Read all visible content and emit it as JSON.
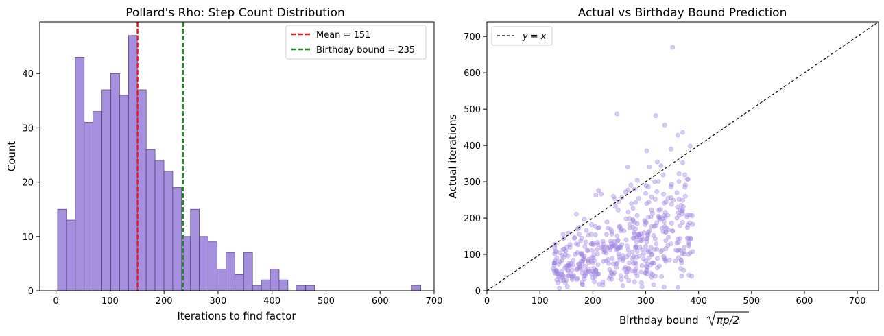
{
  "chart_data": [
    {
      "type": "histogram",
      "title": "Pollard's Rho: Step Count Distribution",
      "xlabel": "Iterations to find factor",
      "ylabel": "Count",
      "xlim": [
        -30,
        700
      ],
      "ylim": [
        0,
        49.5
      ],
      "xticks": [
        0,
        100,
        200,
        300,
        400,
        500,
        600,
        700
      ],
      "yticks": [
        0,
        10,
        20,
        30,
        40
      ],
      "bin_width": 16.4,
      "bin_start": 3,
      "counts": [
        15,
        13,
        43,
        31,
        33,
        37,
        40,
        36,
        47,
        37,
        26,
        24,
        22,
        19,
        10,
        15,
        10,
        9,
        4,
        7,
        3,
        7,
        1,
        2,
        4,
        2,
        0,
        1,
        1,
        0,
        0,
        0,
        0,
        0,
        0,
        0,
        0,
        0,
        0,
        0,
        1
      ],
      "bar_color": "#a68fdf",
      "edge_color": "#4b3a6b",
      "vlines": [
        {
          "label": "Mean = 151",
          "x": 151,
          "color": "#e31a1c"
        },
        {
          "label": "Birthday bound = 235",
          "x": 235,
          "color": "#1a8a1a"
        }
      ],
      "legend_position": "top-right"
    },
    {
      "type": "scatter",
      "title": "Actual vs Birthday Bound Prediction",
      "xlabel": "Birthday bound",
      "xlabel_math": "√πp/2",
      "ylabel": "Actual iterations",
      "xlim": [
        0,
        740
      ],
      "ylim": [
        0,
        740
      ],
      "xticks": [
        0,
        100,
        200,
        300,
        400,
        500,
        600,
        700
      ],
      "yticks": [
        0,
        100,
        200,
        300,
        400,
        500,
        600,
        700
      ],
      "reference_line": {
        "label": "y = x",
        "label_italic_y": "y",
        "label_eq": "=",
        "label_italic_x": "x"
      },
      "point_color": "#9b7fe0",
      "legend_position": "top-left",
      "n_points": 500,
      "points": []
    }
  ]
}
